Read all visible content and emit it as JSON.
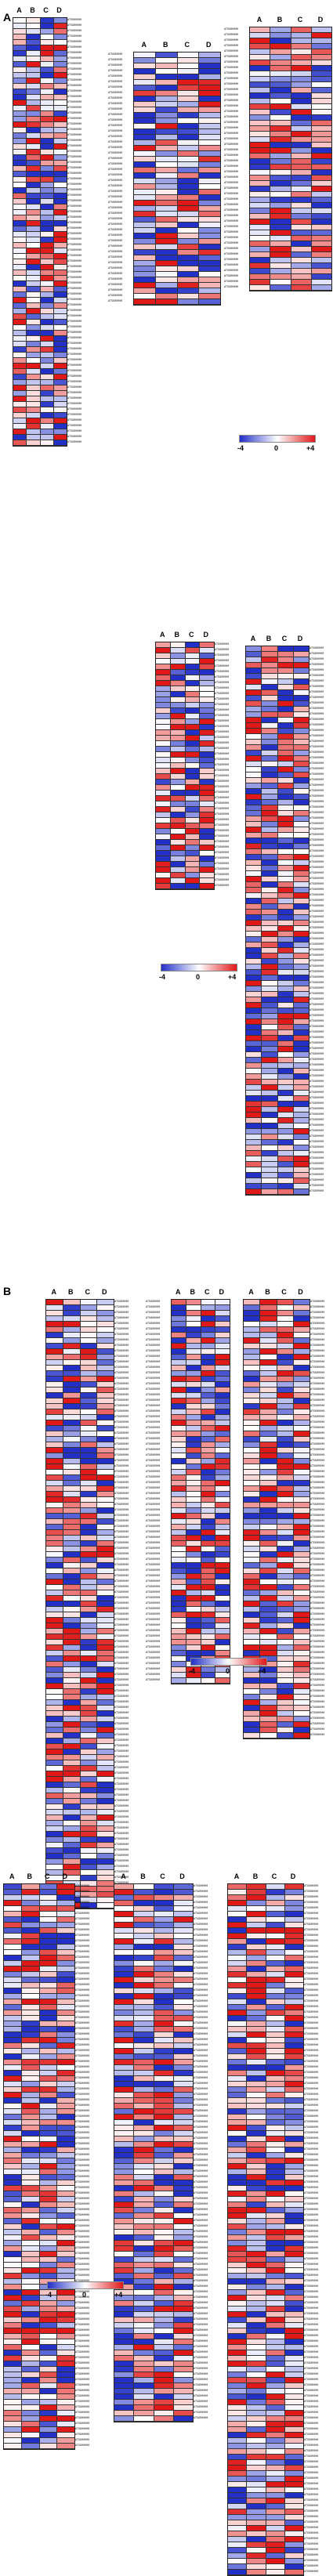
{
  "columns": [
    "A",
    "B",
    "C",
    "D"
  ],
  "panels": [
    {
      "id": "A",
      "label": "A"
    },
    {
      "id": "B",
      "label": "B"
    }
  ],
  "legend": {
    "min": "-4",
    "mid": "0",
    "max": "+4"
  },
  "colors": {
    "blue": "#2230c8",
    "white": "#ffffff",
    "red": "#e01818"
  },
  "gene_id_label": "AT5G00000",
  "heatmaps": [
    {
      "key": "a1",
      "rows": 78
    },
    {
      "key": "a2",
      "rows": 46
    },
    {
      "key": "a3",
      "rows": 48
    },
    {
      "key": "a4",
      "rows": 45
    },
    {
      "key": "a5",
      "rows": 100
    },
    {
      "key": "b1",
      "rows": 111
    },
    {
      "key": "b2",
      "rows": 70
    },
    {
      "key": "b3",
      "rows": 80
    },
    {
      "key": "c1",
      "rows": 103
    },
    {
      "key": "c2",
      "rows": 98
    },
    {
      "key": "c3",
      "rows": 126
    }
  ]
}
